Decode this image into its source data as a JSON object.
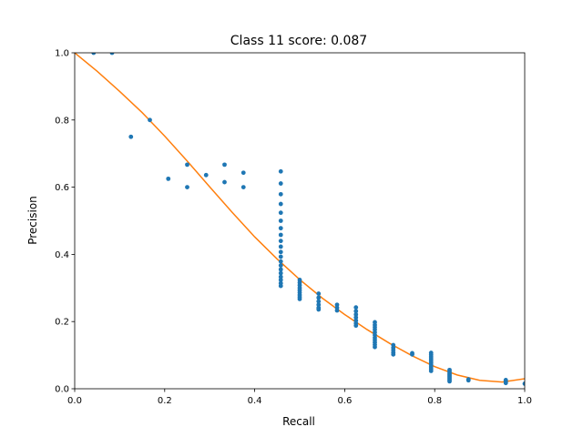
{
  "chart_data": {
    "type": "scatter",
    "title": "Class 11 score: 0.087",
    "xlabel": "Recall",
    "ylabel": "Precision",
    "xlim": [
      0,
      1
    ],
    "ylim": [
      0,
      1
    ],
    "grid": false,
    "xticks": [
      "0.0",
      "0.2",
      "0.4",
      "0.6",
      "0.8",
      "1.0"
    ],
    "yticks": [
      "0.0",
      "0.2",
      "0.4",
      "0.6",
      "0.8",
      "1.0"
    ],
    "colors": {
      "points": "#1f77b4",
      "curve": "#ff7f0e"
    },
    "series": [
      {
        "type": "scatter",
        "points": [
          [
            0.042,
            1.0
          ],
          [
            0.083,
            1.0
          ],
          [
            0.125,
            0.75
          ],
          [
            0.167,
            0.8
          ],
          [
            0.208,
            0.625
          ],
          [
            0.25,
            0.667
          ],
          [
            0.25,
            0.6
          ],
          [
            0.292,
            0.636
          ],
          [
            0.333,
            0.667
          ],
          [
            0.333,
            0.615
          ],
          [
            0.375,
            0.643
          ],
          [
            0.375,
            0.6
          ],
          [
            0.458,
            0.647
          ],
          [
            0.458,
            0.611
          ],
          [
            0.458,
            0.579
          ],
          [
            0.458,
            0.55
          ],
          [
            0.458,
            0.524
          ],
          [
            0.458,
            0.5
          ],
          [
            0.458,
            0.478
          ],
          [
            0.458,
            0.458
          ],
          [
            0.458,
            0.44
          ],
          [
            0.458,
            0.423
          ],
          [
            0.458,
            0.407
          ],
          [
            0.458,
            0.393
          ],
          [
            0.458,
            0.379
          ],
          [
            0.458,
            0.367
          ],
          [
            0.458,
            0.355
          ],
          [
            0.458,
            0.344
          ],
          [
            0.458,
            0.333
          ],
          [
            0.458,
            0.324
          ],
          [
            0.458,
            0.314
          ],
          [
            0.458,
            0.306
          ],
          [
            0.5,
            0.324
          ],
          [
            0.5,
            0.316
          ],
          [
            0.5,
            0.308
          ],
          [
            0.5,
            0.3
          ],
          [
            0.5,
            0.293
          ],
          [
            0.5,
            0.286
          ],
          [
            0.5,
            0.279
          ],
          [
            0.5,
            0.273
          ],
          [
            0.5,
            0.267
          ],
          [
            0.542,
            0.283
          ],
          [
            0.542,
            0.271
          ],
          [
            0.542,
            0.26
          ],
          [
            0.542,
            0.25
          ],
          [
            0.542,
            0.241
          ],
          [
            0.542,
            0.236
          ],
          [
            0.583,
            0.25
          ],
          [
            0.583,
            0.241
          ],
          [
            0.583,
            0.233
          ],
          [
            0.625,
            0.242
          ],
          [
            0.625,
            0.231
          ],
          [
            0.625,
            0.221
          ],
          [
            0.625,
            0.212
          ],
          [
            0.625,
            0.203
          ],
          [
            0.625,
            0.195
          ],
          [
            0.625,
            0.188
          ],
          [
            0.667,
            0.198
          ],
          [
            0.667,
            0.19
          ],
          [
            0.667,
            0.183
          ],
          [
            0.667,
            0.176
          ],
          [
            0.667,
            0.168
          ],
          [
            0.667,
            0.16
          ],
          [
            0.667,
            0.152
          ],
          [
            0.667,
            0.145
          ],
          [
            0.667,
            0.138
          ],
          [
            0.667,
            0.131
          ],
          [
            0.667,
            0.124
          ],
          [
            0.708,
            0.13
          ],
          [
            0.708,
            0.122
          ],
          [
            0.708,
            0.115
          ],
          [
            0.708,
            0.108
          ],
          [
            0.708,
            0.102
          ],
          [
            0.75,
            0.106
          ],
          [
            0.75,
            0.102
          ],
          [
            0.792,
            0.107
          ],
          [
            0.792,
            0.101
          ],
          [
            0.792,
            0.095
          ],
          [
            0.792,
            0.089
          ],
          [
            0.792,
            0.083
          ],
          [
            0.792,
            0.077
          ],
          [
            0.792,
            0.071
          ],
          [
            0.792,
            0.065
          ],
          [
            0.792,
            0.059
          ],
          [
            0.792,
            0.053
          ],
          [
            0.833,
            0.056
          ],
          [
            0.833,
            0.051
          ],
          [
            0.833,
            0.046
          ],
          [
            0.833,
            0.042
          ],
          [
            0.833,
            0.038
          ],
          [
            0.833,
            0.034
          ],
          [
            0.833,
            0.03
          ],
          [
            0.833,
            0.026
          ],
          [
            0.833,
            0.022
          ],
          [
            0.875,
            0.028
          ],
          [
            0.875,
            0.025
          ],
          [
            0.958,
            0.026
          ],
          [
            0.958,
            0.023
          ],
          [
            0.958,
            0.02
          ],
          [
            0.958,
            0.017
          ],
          [
            1.0,
            0.015
          ]
        ]
      },
      {
        "type": "line",
        "points": [
          [
            0.0,
            1.0
          ],
          [
            0.05,
            0.945
          ],
          [
            0.1,
            0.885
          ],
          [
            0.15,
            0.822
          ],
          [
            0.2,
            0.752
          ],
          [
            0.25,
            0.678
          ],
          [
            0.3,
            0.601
          ],
          [
            0.35,
            0.525
          ],
          [
            0.4,
            0.452
          ],
          [
            0.45,
            0.386
          ],
          [
            0.5,
            0.325
          ],
          [
            0.55,
            0.27
          ],
          [
            0.6,
            0.221
          ],
          [
            0.65,
            0.176
          ],
          [
            0.7,
            0.135
          ],
          [
            0.75,
            0.098
          ],
          [
            0.8,
            0.066
          ],
          [
            0.85,
            0.041
          ],
          [
            0.9,
            0.025
          ],
          [
            0.95,
            0.02
          ],
          [
            1.0,
            0.03
          ]
        ]
      }
    ]
  }
}
